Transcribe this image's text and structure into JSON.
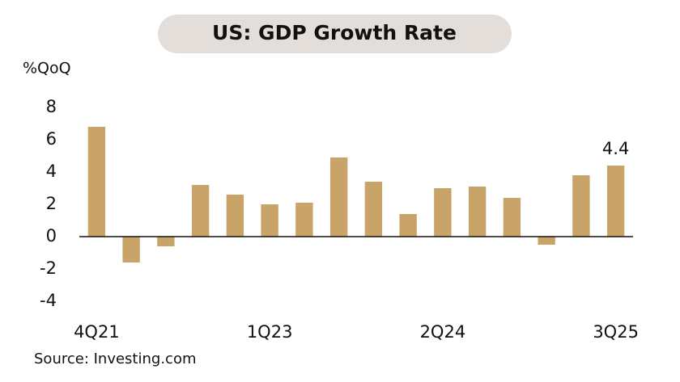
{
  "chart_data": {
    "type": "bar",
    "title": "US: GDP Growth Rate",
    "y_label": "%QoQ",
    "source": "Source: Investing.com",
    "categories": [
      "4Q21",
      null,
      null,
      null,
      null,
      "1Q23",
      null,
      null,
      null,
      null,
      "2Q24",
      null,
      null,
      null,
      null,
      "3Q25"
    ],
    "values": [
      6.8,
      -1.6,
      -0.6,
      3.2,
      2.6,
      2.0,
      2.1,
      4.9,
      3.4,
      1.4,
      3.0,
      3.1,
      2.4,
      -0.5,
      3.8,
      4.4
    ],
    "labeled_value_index": 15,
    "color": "#c9a468",
    "ylim": [
      -4,
      8
    ],
    "yticks": [
      -4,
      -2,
      0,
      2,
      4,
      6,
      8
    ],
    "grid": false
  }
}
